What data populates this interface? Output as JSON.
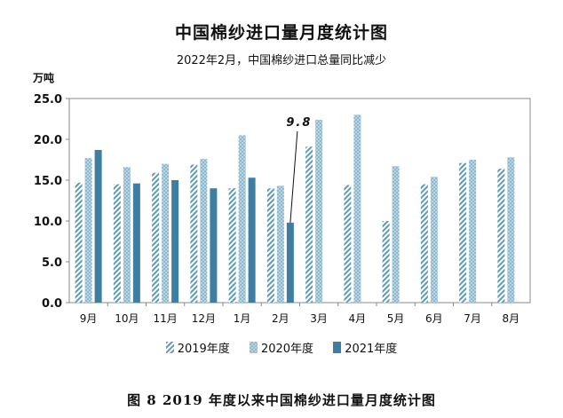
{
  "chart_data": {
    "type": "bar",
    "title": "中国棉纱进口量月度统计图",
    "subtitle": "2022年2月，中国棉纱进口总量同比减少",
    "unit_label": "万吨",
    "categories": [
      "9月",
      "10月",
      "11月",
      "12月",
      "1月",
      "2月",
      "3月",
      "4月",
      "5月",
      "6月",
      "7月",
      "8月"
    ],
    "series": [
      {
        "name": "2019年度",
        "color": "#5b9bb5",
        "pattern": "diagonal-hatch",
        "values": [
          14.7,
          14.5,
          15.9,
          16.9,
          14.0,
          14.0,
          19.1,
          14.4,
          10.0,
          14.5,
          17.1,
          16.4
        ]
      },
      {
        "name": "2020年度",
        "color": "#8db9cf",
        "pattern": "dots",
        "values": [
          17.7,
          16.6,
          17.0,
          17.6,
          20.5,
          14.3,
          22.4,
          23.0,
          16.7,
          15.4,
          17.5,
          17.8
        ]
      },
      {
        "name": "2021年度",
        "color": "#3e7fa1",
        "pattern": "solid",
        "values": [
          18.7,
          14.6,
          15.0,
          14.0,
          15.3,
          9.8,
          null,
          null,
          null,
          null,
          null,
          null
        ]
      }
    ],
    "ylim": [
      0,
      25
    ],
    "yticks": [
      "0.0",
      "5.0",
      "10.0",
      "15.0",
      "20.0",
      "25.0"
    ],
    "grid": false,
    "legend_position": "bottom",
    "annotation": {
      "text": "9.8",
      "category": "2月",
      "series": "2021年度"
    }
  },
  "caption": "图 8  2019 年度以来中国棉纱进口量月度统计图"
}
